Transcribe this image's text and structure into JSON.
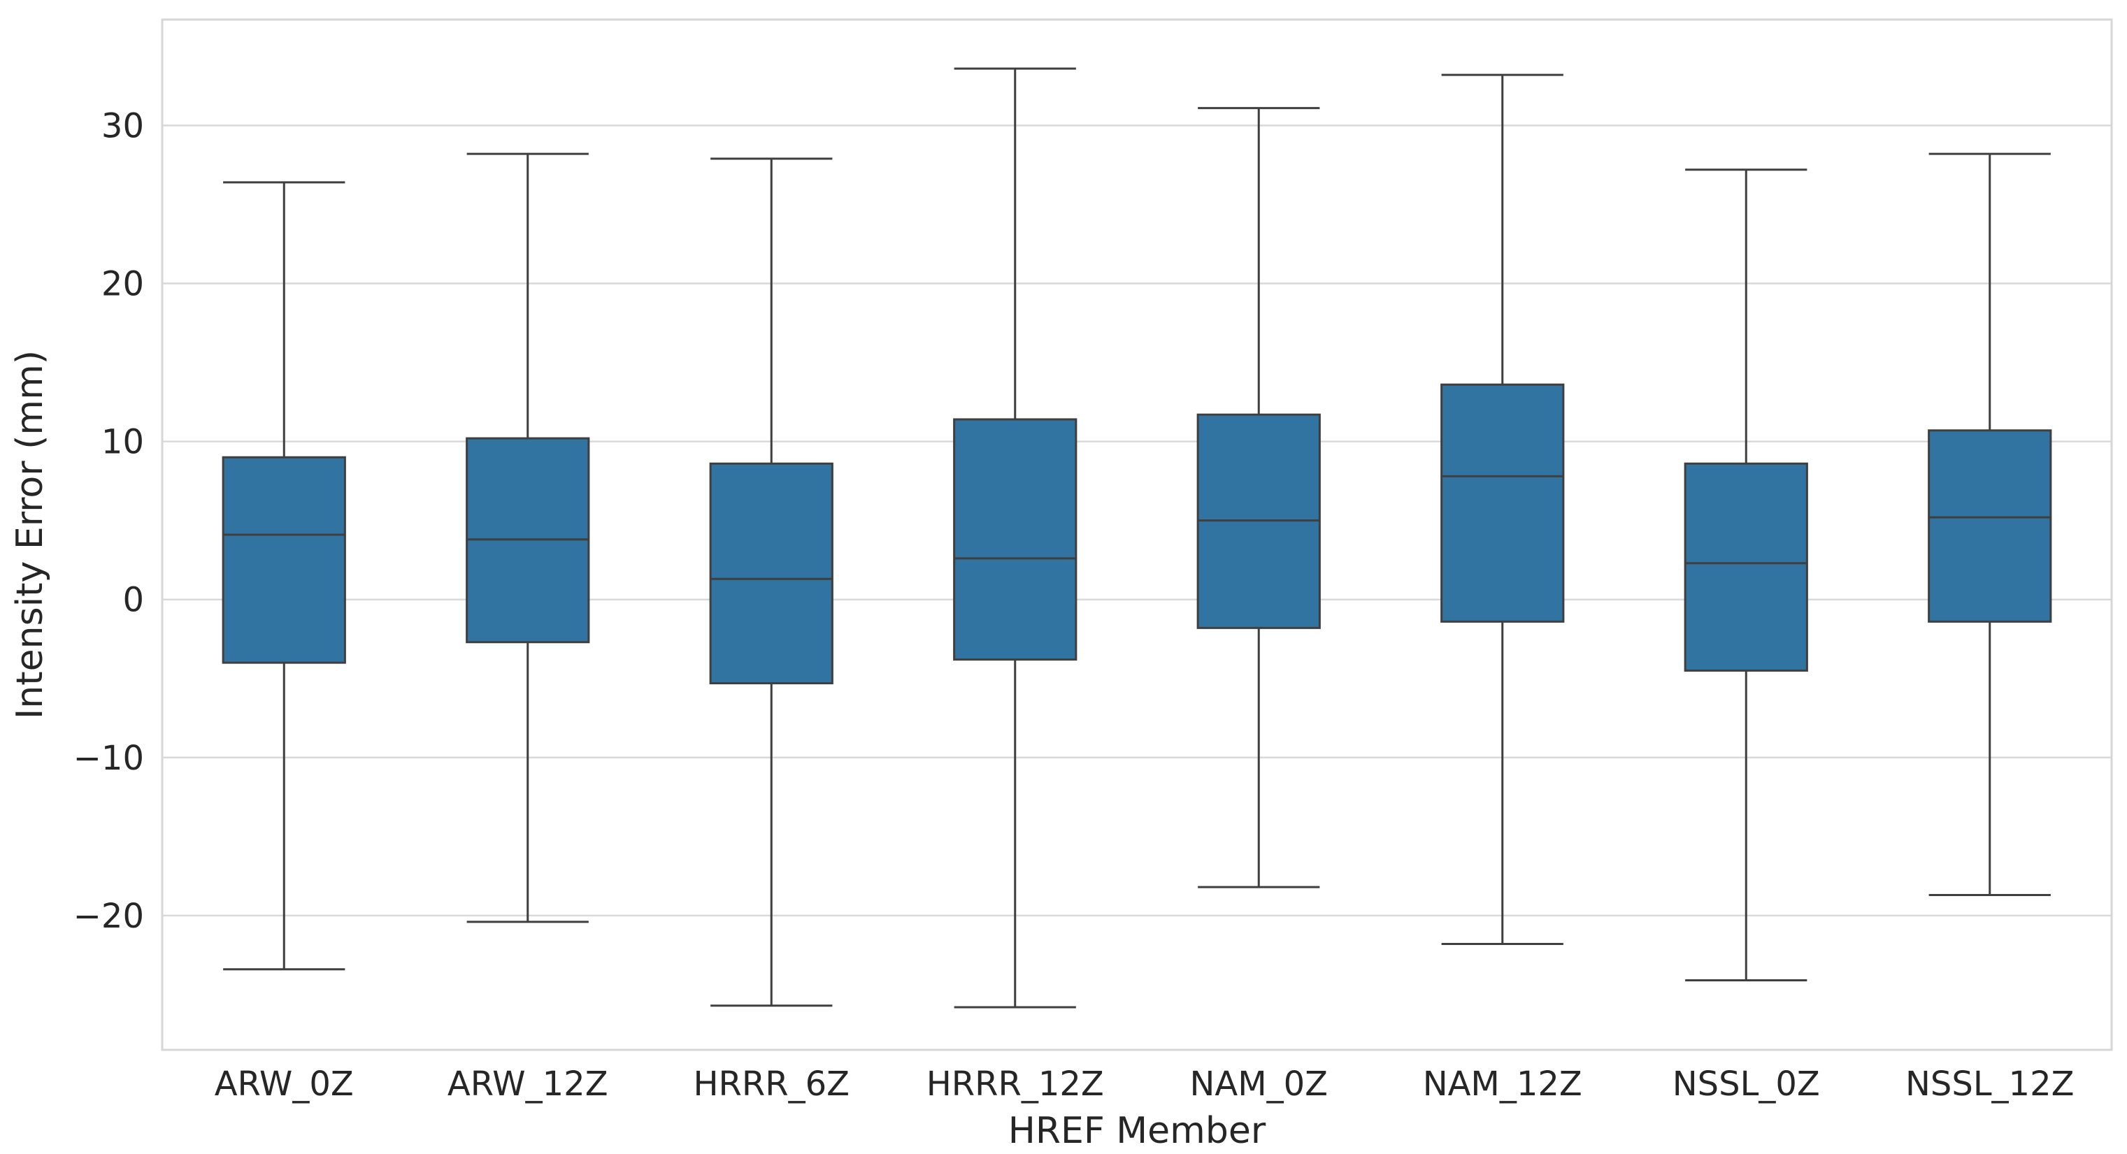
{
  "chart_data": {
    "type": "box",
    "xlabel": "HREF Member",
    "ylabel": "Intensity Error (mm)",
    "ylim": [
      -28.5,
      36.7
    ],
    "yticks": [
      -20,
      -10,
      0,
      10,
      20,
      30
    ],
    "ytick_labels": [
      "−20",
      "−10",
      "0",
      "10",
      "20",
      "30"
    ],
    "grid": true,
    "legend": "none",
    "color": "#3274a1",
    "edge_color": "#3f3f3f",
    "categories": [
      "ARW_0Z",
      "ARW_12Z",
      "HRRR_6Z",
      "HRRR_12Z",
      "NAM_0Z",
      "NAM_12Z",
      "NSSL_0Z",
      "NSSL_12Z"
    ],
    "boxes": [
      {
        "whisker_low": -23.4,
        "q1": -4.0,
        "median": 4.1,
        "q3": 9.0,
        "whisker_high": 26.4
      },
      {
        "whisker_low": -20.4,
        "q1": -2.7,
        "median": 3.8,
        "q3": 10.2,
        "whisker_high": 28.2
      },
      {
        "whisker_low": -25.7,
        "q1": -5.3,
        "median": 1.3,
        "q3": 8.6,
        "whisker_high": 27.9
      },
      {
        "whisker_low": -25.8,
        "q1": -3.8,
        "median": 2.6,
        "q3": 11.4,
        "whisker_high": 33.6
      },
      {
        "whisker_low": -18.2,
        "q1": -1.8,
        "median": 5.0,
        "q3": 11.7,
        "whisker_high": 31.1
      },
      {
        "whisker_low": -21.8,
        "q1": -1.4,
        "median": 7.8,
        "q3": 13.6,
        "whisker_high": 33.2
      },
      {
        "whisker_low": -24.1,
        "q1": -4.5,
        "median": 2.3,
        "q3": 8.6,
        "whisker_high": 27.2
      },
      {
        "whisker_low": -18.7,
        "q1": -1.4,
        "median": 5.2,
        "q3": 10.7,
        "whisker_high": 28.2
      }
    ]
  }
}
